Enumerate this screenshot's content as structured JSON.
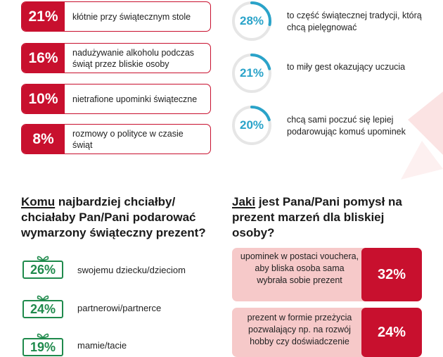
{
  "red_stats": [
    {
      "pct": "21%",
      "text": "kłótnie przy świątecznym stole"
    },
    {
      "pct": "16%",
      "text": "nadużywanie alkoholu podczas świąt przez bliskie osoby"
    },
    {
      "pct": "10%",
      "text": "nietrafione upominki świąteczne"
    },
    {
      "pct": "8%",
      "text": "rozmowy o polityce w czasie świąt"
    }
  ],
  "ring_stats": [
    {
      "pct": "28%",
      "value": 28,
      "text": "to część świątecznej tradycji, którą chcą pielęgnować"
    },
    {
      "pct": "21%",
      "value": 21,
      "text": "to miły gest okazujący uczucia"
    },
    {
      "pct": "20%",
      "value": 20,
      "text": "chcą sami poczuć się lepiej podarowując komuś upominek"
    }
  ],
  "left_heading": {
    "underlined": "Komu",
    "rest": " najbardziej chciałby/ chciałaby Pan/Pani podarować wymarzony świąteczny prezent?"
  },
  "right_heading": {
    "underlined": "Jaki",
    "rest": " jest Pana/Pani pomysł na prezent marzeń dla bliskiej osoby?"
  },
  "gift_stats": [
    {
      "pct": "26%",
      "label": "swojemu dziecku/dzieciom"
    },
    {
      "pct": "24%",
      "label": "partnerowi/partnerce"
    },
    {
      "pct": "19%",
      "label": "mamie/tacie"
    }
  ],
  "gift_ideas": [
    {
      "pct": "32%",
      "text": "upominek w postaci vouchera, aby bliska osoba sama wybrała sobie prezent"
    },
    {
      "pct": "24%",
      "text": "prezent w formie przeżycia pozwalający np. na rozwój hobby czy doświadczenie"
    }
  ],
  "colors": {
    "red": "#c8102e",
    "teal": "#2aa3c9",
    "green": "#1f8a4c",
    "pink": "#f6c9c9",
    "ring_track": "#e6e6e6"
  }
}
